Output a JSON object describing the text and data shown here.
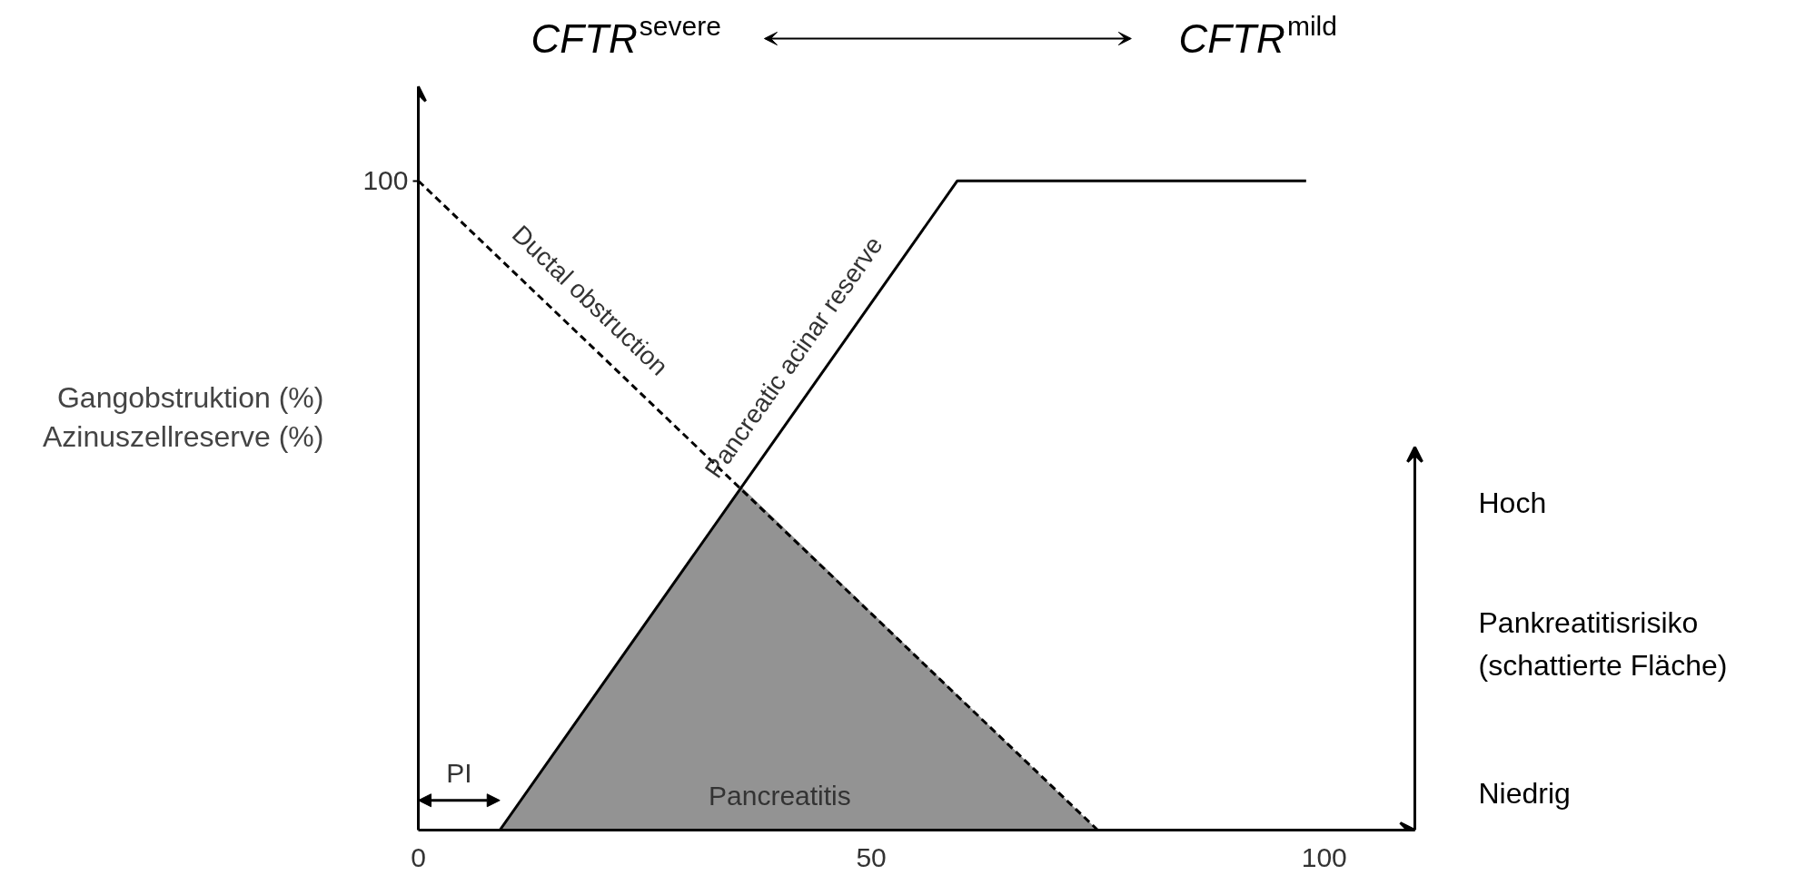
{
  "chart_data": {
    "type": "line",
    "annotations": [
      "CFTR$^{severe}$",
      "CFTR$^{mild}$",
      "Hoch",
      "Niedrig",
      "PI"
    ],
    "ylabel": "Gangobstruktion (%)\nAzinuszellreserve (%)",
    "y2label": "Pankreatitisrisiko\n(schattierte Fläche)",
    "xlim": [
      0,
      110
    ],
    "xticks": [
      0,
      50,
      100
    ],
    "ylim": [
      0,
      114.5
    ],
    "yticks": [
      100
    ],
    "series": [
      {
        "name": "Pancreatitis",
        "type": "area",
        "color": "#808080",
        "x": [
          9,
          35.7,
          75
        ],
        "values": [
          0,
          52.8,
          0
        ]
      },
      {
        "name": "Ductal obstruction",
        "line_style": "dashed",
        "color": "#000000",
        "x": [
          0,
          75
        ],
        "values": [
          100,
          0
        ]
      },
      {
        "name": "Pancreatic acinar reserve",
        "line_style": "solid",
        "color": "#000000",
        "x": [
          9,
          59.5,
          98
        ],
        "values": [
          0,
          100,
          100
        ]
      }
    ],
    "grid": false
  }
}
